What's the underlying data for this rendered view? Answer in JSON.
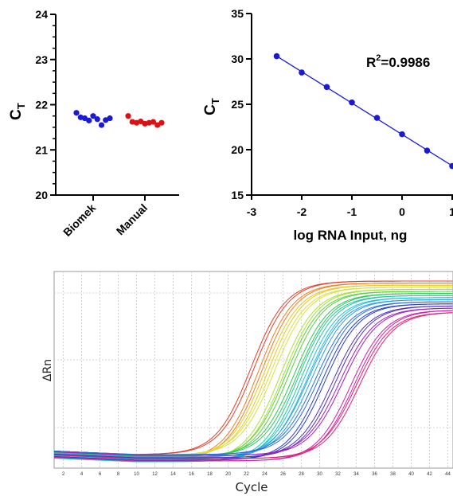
{
  "chart_data": [
    {
      "type": "scatter",
      "categories": [
        "Biomek",
        "Manual"
      ],
      "ylabel_main": "C",
      "ylabel_sub": "T",
      "ylim": [
        20,
        24
      ],
      "yticks": [
        "20",
        "21",
        "22",
        "23",
        "24"
      ],
      "series": [
        {
          "category": "Biomek",
          "color": "#1a1ad6",
          "values": [
            21.82,
            21.72,
            21.7,
            21.65,
            21.75,
            21.68,
            21.55,
            21.66,
            21.7
          ]
        },
        {
          "category": "Manual",
          "color": "#e01010",
          "values": [
            21.75,
            21.62,
            21.6,
            21.63,
            21.58,
            21.6,
            21.62,
            21.55,
            21.6
          ]
        }
      ]
    },
    {
      "type": "line",
      "xlabel": "log RNA Input, ng",
      "ylabel_main": "C",
      "ylabel_sub": "T",
      "annotation_main": "R",
      "annotation_sup": "2",
      "annotation_rest": "=0.9986",
      "xlim": [
        -3,
        1
      ],
      "ylim": [
        15,
        35
      ],
      "xticks": [
        "-3",
        "-2",
        "-1",
        "0",
        "1"
      ],
      "yticks": [
        "15",
        "20",
        "25",
        "30",
        "35"
      ],
      "color": "#1a1ad6",
      "x": [
        -2.5,
        -2.0,
        -1.5,
        -1.0,
        -0.5,
        0.0,
        0.5,
        1.0
      ],
      "y": [
        30.3,
        28.5,
        26.9,
        25.2,
        23.5,
        21.7,
        19.9,
        18.2
      ]
    },
    {
      "type": "line",
      "xlabel": "Cycle",
      "ylabel": "ΔRn",
      "xlim": [
        1,
        45
      ],
      "xticks": [
        "2",
        "4",
        "6",
        "8",
        "10",
        "12",
        "14",
        "16",
        "18",
        "20",
        "22",
        "24",
        "26",
        "28",
        "30",
        "32",
        "34",
        "36",
        "38",
        "40",
        "42",
        "44"
      ],
      "grid": true,
      "series_midpoints": [
        22.5,
        23.3,
        24.0,
        24.7,
        25.7,
        26.3,
        27.2,
        27.6,
        28.3,
        28.8,
        29.6,
        30.2,
        31.4,
        32.2,
        33.4,
        34.0
      ],
      "series_colors": [
        "#e0402a",
        "#f07d1e",
        "#e8c81c",
        "#d8e23a",
        "#a8e03a",
        "#5ad23c",
        "#2ec85a",
        "#22c8a0",
        "#20c0d8",
        "#2aa0e8",
        "#2a70e0",
        "#2a40d0",
        "#5030c8",
        "#a020c0",
        "#d020a8",
        "#e02070"
      ]
    }
  ]
}
